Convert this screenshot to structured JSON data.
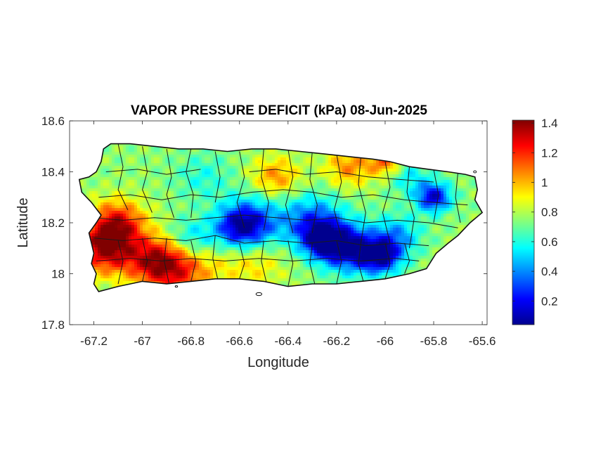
{
  "map": {
    "title": "VAPOR PRESSURE DEFICIT (kPa) 08-Jun-2025",
    "xlabel": "Longitude",
    "ylabel": "Latitude",
    "xlim": [
      -67.3,
      -65.58
    ],
    "ylim": [
      17.8,
      18.6
    ],
    "x_ticks": [
      {
        "value": -67.2,
        "label": "-67.2"
      },
      {
        "value": -67.0,
        "label": "-67"
      },
      {
        "value": -66.8,
        "label": "-66.8"
      },
      {
        "value": -66.6,
        "label": "-66.6"
      },
      {
        "value": -66.4,
        "label": "-66.4"
      },
      {
        "value": -66.2,
        "label": "-66.2"
      },
      {
        "value": -66.0,
        "label": "-66"
      },
      {
        "value": -65.8,
        "label": "-65.8"
      },
      {
        "value": -65.6,
        "label": "-65.6"
      }
    ],
    "y_ticks": [
      {
        "value": 18.6,
        "label": "18.6"
      },
      {
        "value": 18.4,
        "label": "18.4"
      },
      {
        "value": 18.2,
        "label": "18.2"
      },
      {
        "value": 18.0,
        "label": "18"
      },
      {
        "value": 17.8,
        "label": "17.8"
      }
    ],
    "colormap": "jet",
    "colorbar": {
      "range": [
        0.04,
        1.42
      ],
      "ticks": [
        {
          "value": 1.4,
          "label": "1.4"
        },
        {
          "value": 1.2,
          "label": "1.2"
        },
        {
          "value": 1.0,
          "label": "1"
        },
        {
          "value": 0.8,
          "label": "0.8"
        },
        {
          "value": 0.6,
          "label": "0.6"
        },
        {
          "value": 0.4,
          "label": "0.4"
        },
        {
          "value": 0.2,
          "label": "0.2"
        }
      ]
    },
    "colors": {
      "jet": [
        "#00008f",
        "#0000ff",
        "#0080ff",
        "#00ffff",
        "#80ff80",
        "#ffff00",
        "#ff8000",
        "#ff0000",
        "#800000"
      ],
      "boundary": "#1a1a1a"
    },
    "island_outline": [
      [
        -67.26,
        18.37
      ],
      [
        -67.22,
        18.38
      ],
      [
        -67.19,
        18.4
      ],
      [
        -67.17,
        18.44
      ],
      [
        -67.16,
        18.49
      ],
      [
        -67.13,
        18.51
      ],
      [
        -67.05,
        18.51
      ],
      [
        -66.95,
        18.5
      ],
      [
        -66.85,
        18.49
      ],
      [
        -66.75,
        18.49
      ],
      [
        -66.65,
        18.48
      ],
      [
        -66.55,
        18.49
      ],
      [
        -66.45,
        18.49
      ],
      [
        -66.35,
        18.48
      ],
      [
        -66.25,
        18.47
      ],
      [
        -66.15,
        18.46
      ],
      [
        -66.05,
        18.45
      ],
      [
        -65.98,
        18.44
      ],
      [
        -65.9,
        18.42
      ],
      [
        -65.82,
        18.41
      ],
      [
        -65.74,
        18.4
      ],
      [
        -65.67,
        18.39
      ],
      [
        -65.63,
        18.38
      ],
      [
        -65.62,
        18.33
      ],
      [
        -65.63,
        18.29
      ],
      [
        -65.6,
        18.24
      ],
      [
        -65.65,
        18.2
      ],
      [
        -65.7,
        18.15
      ],
      [
        -65.74,
        18.12
      ],
      [
        -65.79,
        18.08
      ],
      [
        -65.83,
        18.02
      ],
      [
        -65.9,
        18.0
      ],
      [
        -66.0,
        17.98
      ],
      [
        -66.1,
        17.97
      ],
      [
        -66.2,
        17.96
      ],
      [
        -66.3,
        17.96
      ],
      [
        -66.4,
        17.95
      ],
      [
        -66.5,
        17.97
      ],
      [
        -66.6,
        17.98
      ],
      [
        -66.7,
        17.98
      ],
      [
        -66.8,
        17.97
      ],
      [
        -66.9,
        17.96
      ],
      [
        -67.0,
        17.97
      ],
      [
        -67.1,
        17.95
      ],
      [
        -67.18,
        17.93
      ],
      [
        -67.2,
        17.96
      ],
      [
        -67.19,
        18.0
      ],
      [
        -67.21,
        18.04
      ],
      [
        -67.2,
        18.08
      ],
      [
        -67.21,
        18.12
      ],
      [
        -67.22,
        18.16
      ],
      [
        -67.19,
        18.2
      ],
      [
        -67.17,
        18.23
      ],
      [
        -67.21,
        18.28
      ],
      [
        -67.25,
        18.32
      ]
    ],
    "value_centers": [
      {
        "lon": -67.15,
        "lat": 18.1,
        "value": 1.35,
        "sigma": 0.09
      },
      {
        "lon": -67.1,
        "lat": 18.2,
        "value": 1.2,
        "sigma": 0.08
      },
      {
        "lon": -66.85,
        "lat": 18.02,
        "value": 1.2,
        "sigma": 0.1
      },
      {
        "lon": -66.95,
        "lat": 18.05,
        "value": 1.15,
        "sigma": 0.08
      },
      {
        "lon": -66.55,
        "lat": 18.05,
        "value": 0.95,
        "sigma": 0.1
      },
      {
        "lon": -66.45,
        "lat": 18.38,
        "value": 1.05,
        "sigma": 0.07
      },
      {
        "lon": -66.15,
        "lat": 18.42,
        "value": 1.05,
        "sigma": 0.07
      },
      {
        "lon": -66.0,
        "lat": 18.44,
        "value": 1.1,
        "sigma": 0.05
      },
      {
        "lon": -66.55,
        "lat": 18.2,
        "value": 0.35,
        "sigma": 0.09
      },
      {
        "lon": -66.3,
        "lat": 18.2,
        "value": 0.3,
        "sigma": 0.09
      },
      {
        "lon": -66.6,
        "lat": 18.18,
        "value": 0.3,
        "sigma": 0.07
      },
      {
        "lon": -66.8,
        "lat": 18.13,
        "value": 0.45,
        "sigma": 0.07
      },
      {
        "lon": -66.15,
        "lat": 18.1,
        "value": 0.15,
        "sigma": 0.08
      },
      {
        "lon": -66.02,
        "lat": 18.07,
        "value": 0.1,
        "sigma": 0.06
      },
      {
        "lon": -66.25,
        "lat": 18.13,
        "value": 0.2,
        "sigma": 0.06
      },
      {
        "lon": -65.8,
        "lat": 18.3,
        "value": 0.15,
        "sigma": 0.05
      },
      {
        "lon": -65.95,
        "lat": 18.15,
        "value": 0.45,
        "sigma": 0.07
      },
      {
        "lon": -65.9,
        "lat": 18.38,
        "value": 0.55,
        "sigma": 0.06
      },
      {
        "lon": -66.75,
        "lat": 18.38,
        "value": 0.6,
        "sigma": 0.08
      }
    ],
    "base_value": 0.75,
    "municipal_boundaries": [
      [
        [
          -67.1,
          18.51
        ],
        [
          -67.08,
          18.42
        ],
        [
          -67.1,
          18.33
        ],
        [
          -67.06,
          18.25
        ]
      ],
      [
        [
          -67.0,
          18.5
        ],
        [
          -66.98,
          18.4
        ],
        [
          -67.0,
          18.33
        ],
        [
          -66.96,
          18.24
        ]
      ],
      [
        [
          -66.9,
          18.49
        ],
        [
          -66.88,
          18.38
        ],
        [
          -66.9,
          18.31
        ],
        [
          -66.87,
          18.22
        ]
      ],
      [
        [
          -66.8,
          18.49
        ],
        [
          -66.82,
          18.4
        ],
        [
          -66.79,
          18.31
        ],
        [
          -66.8,
          18.22
        ]
      ],
      [
        [
          -66.7,
          18.48
        ],
        [
          -66.68,
          18.38
        ],
        [
          -66.7,
          18.28
        ]
      ],
      [
        [
          -66.6,
          18.48
        ],
        [
          -66.58,
          18.38
        ],
        [
          -66.61,
          18.28
        ],
        [
          -66.58,
          18.18
        ]
      ],
      [
        [
          -66.5,
          18.49
        ],
        [
          -66.51,
          18.38
        ],
        [
          -66.48,
          18.28
        ],
        [
          -66.5,
          18.17
        ]
      ],
      [
        [
          -66.4,
          18.49
        ],
        [
          -66.38,
          18.38
        ],
        [
          -66.41,
          18.27
        ],
        [
          -66.38,
          18.16
        ]
      ],
      [
        [
          -66.3,
          18.48
        ],
        [
          -66.31,
          18.37
        ],
        [
          -66.28,
          18.27
        ],
        [
          -66.3,
          18.16
        ]
      ],
      [
        [
          -66.2,
          18.47
        ],
        [
          -66.18,
          18.36
        ],
        [
          -66.21,
          18.25
        ],
        [
          -66.18,
          18.14
        ]
      ],
      [
        [
          -66.1,
          18.46
        ],
        [
          -66.11,
          18.35
        ],
        [
          -66.08,
          18.24
        ],
        [
          -66.1,
          18.12
        ]
      ],
      [
        [
          -66.0,
          18.44
        ],
        [
          -65.98,
          18.34
        ],
        [
          -66.01,
          18.24
        ],
        [
          -65.98,
          18.12
        ]
      ],
      [
        [
          -65.9,
          18.42
        ],
        [
          -65.91,
          18.32
        ],
        [
          -65.88,
          18.22
        ],
        [
          -65.9,
          18.1
        ]
      ],
      [
        [
          -65.8,
          18.41
        ],
        [
          -65.78,
          18.31
        ],
        [
          -65.8,
          18.2
        ]
      ],
      [
        [
          -65.7,
          18.4
        ],
        [
          -65.71,
          18.3
        ],
        [
          -65.69,
          18.2
        ]
      ],
      [
        [
          -67.18,
          18.3
        ],
        [
          -67.05,
          18.31
        ],
        [
          -66.92,
          18.29
        ],
        [
          -66.8,
          18.31
        ],
        [
          -66.68,
          18.3
        ],
        [
          -66.55,
          18.32
        ],
        [
          -66.42,
          18.33
        ],
        [
          -66.3,
          18.32
        ],
        [
          -66.18,
          18.3
        ],
        [
          -66.05,
          18.31
        ],
        [
          -65.92,
          18.29
        ],
        [
          -65.8,
          18.28
        ],
        [
          -65.66,
          18.27
        ]
      ],
      [
        [
          -67.2,
          18.14
        ],
        [
          -67.08,
          18.13
        ],
        [
          -66.95,
          18.14
        ],
        [
          -66.82,
          18.13
        ],
        [
          -66.7,
          18.15
        ],
        [
          -66.58,
          18.12
        ],
        [
          -66.45,
          18.13
        ],
        [
          -66.32,
          18.12
        ],
        [
          -66.2,
          18.13
        ],
        [
          -66.08,
          18.11
        ],
        [
          -65.95,
          18.12
        ],
        [
          -65.82,
          18.11
        ]
      ],
      [
        [
          -67.1,
          18.13
        ],
        [
          -67.08,
          18.05
        ],
        [
          -67.1,
          17.96
        ]
      ],
      [
        [
          -67.0,
          18.14
        ],
        [
          -66.98,
          18.05
        ],
        [
          -67.0,
          17.97
        ]
      ],
      [
        [
          -66.9,
          18.14
        ],
        [
          -66.91,
          18.05
        ],
        [
          -66.89,
          17.96
        ]
      ],
      [
        [
          -66.8,
          18.13
        ],
        [
          -66.78,
          18.05
        ],
        [
          -66.8,
          17.97
        ]
      ],
      [
        [
          -66.7,
          18.15
        ],
        [
          -66.71,
          18.06
        ],
        [
          -66.69,
          17.98
        ]
      ],
      [
        [
          -66.6,
          18.12
        ],
        [
          -66.58,
          18.04
        ],
        [
          -66.6,
          17.98
        ]
      ],
      [
        [
          -66.5,
          18.13
        ],
        [
          -66.51,
          18.05
        ],
        [
          -66.49,
          17.97
        ]
      ],
      [
        [
          -66.4,
          18.13
        ],
        [
          -66.38,
          18.04
        ],
        [
          -66.4,
          17.95
        ]
      ],
      [
        [
          -66.3,
          18.12
        ],
        [
          -66.31,
          18.04
        ],
        [
          -66.29,
          17.96
        ]
      ],
      [
        [
          -66.2,
          18.13
        ],
        [
          -66.18,
          18.05
        ],
        [
          -66.2,
          17.96
        ]
      ],
      [
        [
          -66.1,
          18.12
        ],
        [
          -66.11,
          18.04
        ],
        [
          -66.09,
          17.97
        ]
      ],
      [
        [
          -66.0,
          18.12
        ],
        [
          -65.98,
          18.04
        ],
        [
          -66.0,
          17.98
        ]
      ],
      [
        [
          -65.92,
          18.12
        ],
        [
          -65.9,
          18.05
        ],
        [
          -65.92,
          18.0
        ]
      ],
      [
        [
          -67.15,
          18.4
        ],
        [
          -67.02,
          18.41
        ],
        [
          -66.9,
          18.39
        ],
        [
          -66.76,
          18.41
        ]
      ],
      [
        [
          -66.56,
          18.4
        ],
        [
          -66.45,
          18.41
        ],
        [
          -66.33,
          18.39
        ],
        [
          -66.2,
          18.4
        ],
        [
          -66.07,
          18.38
        ],
        [
          -65.94,
          18.37
        ],
        [
          -65.8,
          18.36
        ]
      ],
      [
        [
          -67.2,
          18.22
        ],
        [
          -67.08,
          18.21
        ],
        [
          -66.95,
          18.22
        ],
        [
          -66.82,
          18.21
        ],
        [
          -66.7,
          18.22
        ],
        [
          -66.58,
          18.23
        ],
        [
          -66.45,
          18.22
        ],
        [
          -66.32,
          18.21
        ],
        [
          -66.2,
          18.22
        ],
        [
          -66.08,
          18.2
        ],
        [
          -65.95,
          18.21
        ],
        [
          -65.82,
          18.2
        ],
        [
          -65.7,
          18.18
        ]
      ],
      [
        [
          -67.19,
          18.05
        ],
        [
          -67.05,
          18.06
        ],
        [
          -66.92,
          18.05
        ],
        [
          -66.8,
          18.06
        ],
        [
          -66.66,
          18.05
        ],
        [
          -66.52,
          18.06
        ],
        [
          -66.38,
          18.05
        ],
        [
          -66.24,
          18.06
        ],
        [
          -66.1,
          18.05
        ],
        [
          -65.96,
          18.06
        ],
        [
          -65.86,
          18.05
        ]
      ]
    ],
    "small_islands": [
      {
        "lon": -66.52,
        "lat": 17.92,
        "rlon": 0.012,
        "rlat": 0.006
      },
      {
        "lon": -65.63,
        "lat": 18.4,
        "rlon": 0.006,
        "rlat": 0.004
      },
      {
        "lon": -66.86,
        "lat": 17.95,
        "rlon": 0.005,
        "rlat": 0.003
      }
    ]
  }
}
